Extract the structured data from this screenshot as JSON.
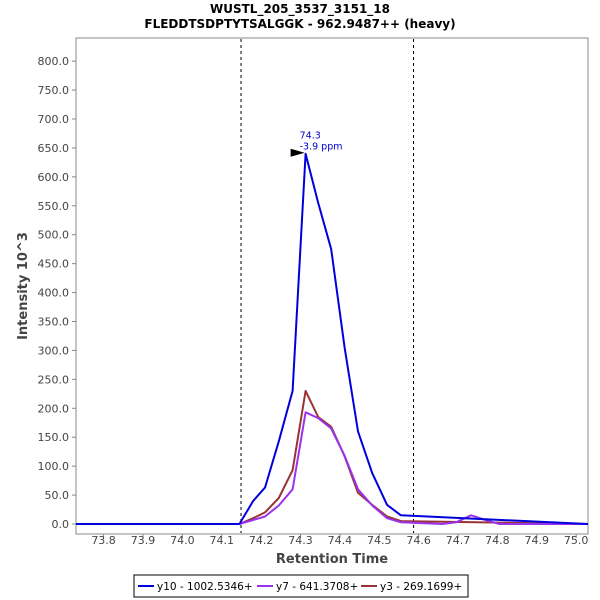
{
  "chart_data": {
    "type": "line",
    "title": "WUSTL_205_3537_3151_18",
    "subtitle": "FLEDDTSDPTYTSALGGK - 962.9487++ (heavy)",
    "xlabel": "Retention Time",
    "ylabel": "Intensity 10^3",
    "xlim": [
      73.73,
      75.03
    ],
    "ylim": [
      0,
      840
    ],
    "x_ticks": [
      73.8,
      73.9,
      74.0,
      74.1,
      74.2,
      74.3,
      74.4,
      74.5,
      74.6,
      74.7,
      74.8,
      74.9,
      75.0
    ],
    "x_tick_labels": [
      "73.8",
      "73.9",
      "74.0",
      "74.1",
      "74.2",
      "74.3",
      "74.4",
      "74.5",
      "74.6",
      "74.7",
      "74.8",
      "74.9",
      "75.0"
    ],
    "y_ticks": [
      0,
      50,
      100,
      150,
      200,
      250,
      300,
      350,
      400,
      450,
      500,
      550,
      600,
      650,
      700,
      750,
      800
    ],
    "y_tick_labels": [
      "0.0",
      "50.0",
      "100.0",
      "150.0",
      "200.0",
      "250.0",
      "300.0",
      "350.0",
      "400.0",
      "450.0",
      "500.0",
      "550.0",
      "600.0",
      "650.0",
      "700.0",
      "750.0",
      "800.0"
    ],
    "boundaries": [
      74.149,
      74.587
    ],
    "series": [
      {
        "name": "y10 - 1002.5346+",
        "color": "#0000dd",
        "x": [
          73.73,
          74.145,
          74.18,
          74.21,
          74.245,
          74.28,
          74.313,
          74.345,
          74.378,
          74.412,
          74.446,
          74.482,
          74.52,
          74.555,
          75.03
        ],
        "y": [
          0,
          0,
          40,
          63,
          143,
          230,
          640,
          555,
          475,
          305,
          160,
          88,
          33,
          15,
          0
        ]
      },
      {
        "name": "y7 - 641.3708+",
        "color": "#9933ee",
        "x": [
          73.73,
          74.145,
          74.18,
          74.21,
          74.245,
          74.28,
          74.313,
          74.345,
          74.378,
          74.412,
          74.446,
          74.482,
          74.52,
          74.555,
          74.66,
          74.695,
          74.733,
          74.77,
          74.805,
          75.03
        ],
        "y": [
          0,
          0,
          7,
          13,
          32,
          60,
          193,
          183,
          165,
          118,
          60,
          32,
          10,
          3,
          0,
          3,
          15,
          7,
          0,
          0
        ]
      },
      {
        "name": "y3 - 269.1699+",
        "color": "#993333",
        "x": [
          73.73,
          74.145,
          74.18,
          74.21,
          74.245,
          74.28,
          74.313,
          74.345,
          74.378,
          74.412,
          74.446,
          74.482,
          74.52,
          74.555,
          75.03
        ],
        "y": [
          0,
          0,
          10,
          20,
          45,
          93,
          230,
          185,
          168,
          117,
          54,
          33,
          13,
          5,
          0
        ]
      }
    ],
    "annotation": {
      "x": 74.313,
      "y": 640,
      "label_rt": "74.3",
      "label_ppm": "-3.9 ppm"
    },
    "legend_position": "bottom-center"
  }
}
